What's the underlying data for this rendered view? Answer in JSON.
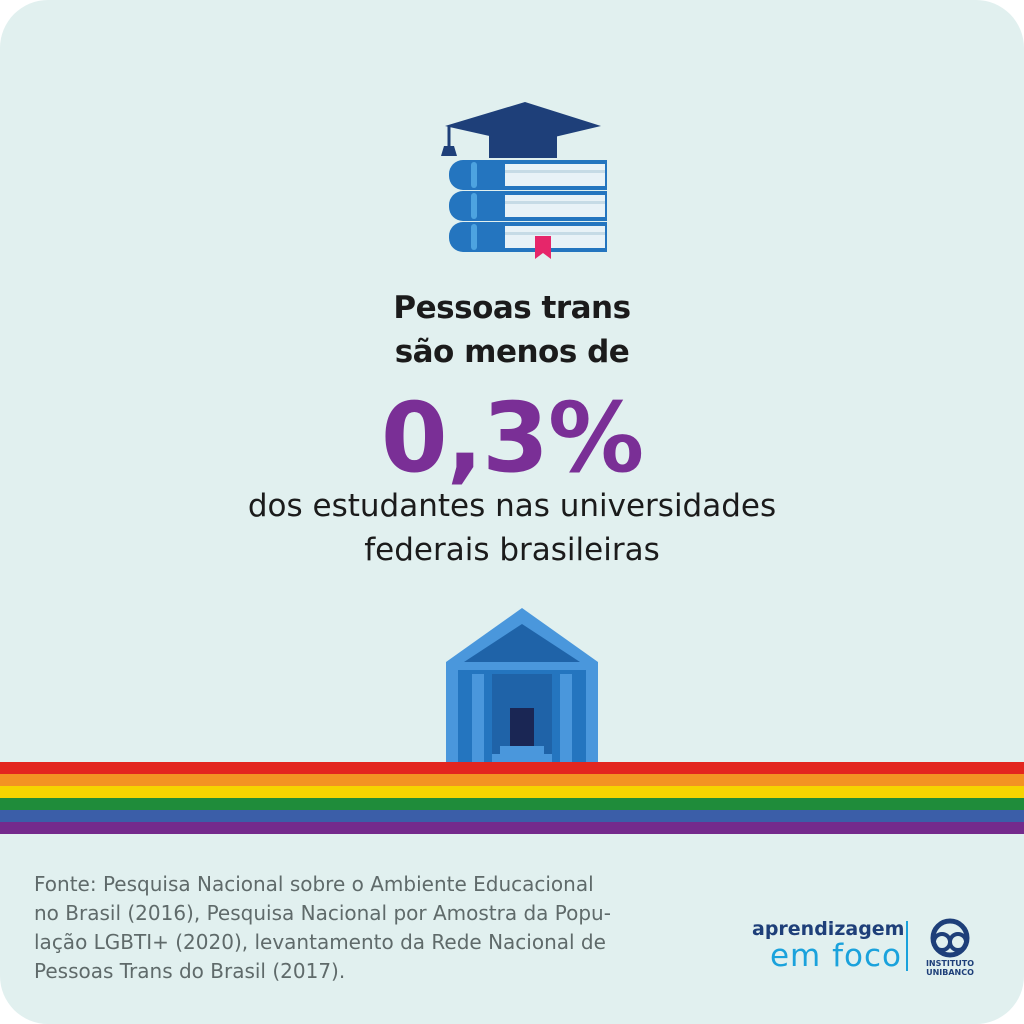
{
  "headline": {
    "line1": "Pessoas trans",
    "line2": "são menos de"
  },
  "stat": {
    "value": "0,3%",
    "color": "#7a2f96"
  },
  "description": {
    "line1": "dos estudantes nas universidades",
    "line2": "federais brasileiras"
  },
  "source": {
    "line1": "Fonte: Pesquisa Nacional sobre o Ambiente Educacional",
    "line2": "no Brasil (2016), Pesquisa Nacional por Amostra da Popu-",
    "line3": "lação LGBTI+ (2020), levantamento da Rede Nacional de",
    "line4": "Pessoas Trans do Brasil (2017)."
  },
  "brand": {
    "name_line1": "aprendizagem",
    "name_line2": "em foco",
    "logo_text_line1": "INSTITUTO",
    "logo_text_line2": "UNIBANCO"
  },
  "icons": {
    "top": "graduation-books-icon",
    "bottom": "university-building-icon"
  },
  "colors": {
    "background": "#e1f0ef",
    "rainbow": [
      "#e3261f",
      "#f39323",
      "#f6d400",
      "#1f8c3a",
      "#3b5ea8",
      "#742a8c"
    ]
  }
}
